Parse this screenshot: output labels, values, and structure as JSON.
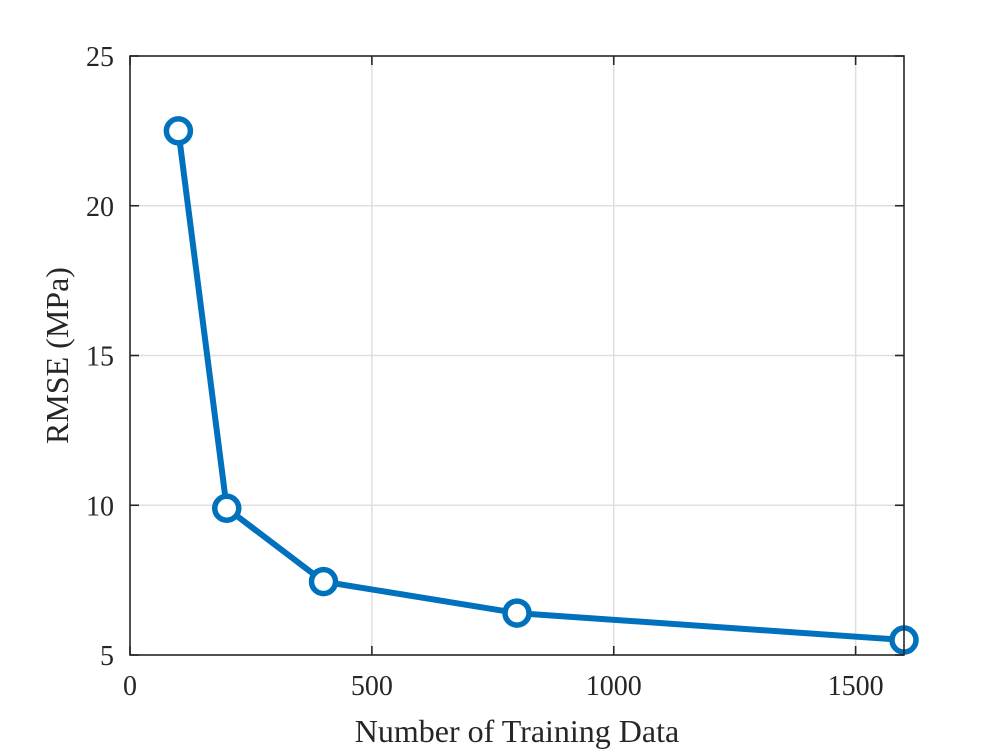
{
  "chart_data": {
    "type": "line",
    "title": "",
    "xlabel": "Number of Training Data",
    "ylabel": "RMSE (MPa)",
    "xlim": [
      0,
      1600
    ],
    "ylim": [
      5,
      25
    ],
    "xticks": [
      0,
      500,
      1000,
      1500
    ],
    "yticks": [
      5,
      10,
      15,
      20,
      25
    ],
    "xtick_labels": [
      "0",
      "500",
      "1000",
      "1500"
    ],
    "ytick_labels": [
      "5",
      "10",
      "15",
      "20",
      "25"
    ],
    "grid": true,
    "legend": "none",
    "marker": "circle-open",
    "colors": {
      "series": "#0072BD",
      "axis": "#262626",
      "grid": "#DFDFDF",
      "background": "#FFFFFF"
    },
    "series": [
      {
        "x": [
          100,
          200,
          400,
          800,
          1600
        ],
        "y": [
          22.5,
          9.9,
          7.45,
          6.4,
          5.5
        ]
      }
    ]
  }
}
